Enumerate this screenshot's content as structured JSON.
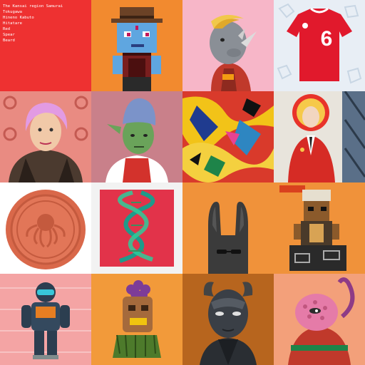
{
  "gallery": {
    "tiles": [
      {
        "name": "text-traits",
        "bg": "#ee3131",
        "lines": [
          "The Kansai region Samurai",
          "Tokugawa",
          "Hineno Kabuto",
          "Hitatare",
          "Red",
          "Spear",
          "Beard"
        ]
      },
      {
        "name": "pixel-cowboy",
        "bg": "#f28a2f"
      },
      {
        "name": "rhino-hoodie",
        "bg": "#f7b6c8"
      },
      {
        "name": "red-jersey",
        "bg": "#e8eef5",
        "jersey_number": "6"
      },
      {
        "name": "pink-hair-woman",
        "bg": "#e98b82"
      },
      {
        "name": "green-elf",
        "bg": "#c9808a"
      },
      {
        "name": "abstract-splash",
        "bg": "#d93a2b"
      },
      {
        "name": "bald-man-suit",
        "bg": "#e8e4dc"
      },
      {
        "name": "orange-coin",
        "bg": "#ffffff"
      },
      {
        "name": "dna-helix",
        "bg": "#f2f2f2"
      },
      {
        "name": "black-bunny",
        "bg": "#f0923a"
      },
      {
        "name": "voxel-figure",
        "bg": "#f0923a"
      },
      {
        "name": "armored-astronaut",
        "bg": "#f4a4a4"
      },
      {
        "name": "tiki-mask-creature",
        "bg": "#f29a3a"
      },
      {
        "name": "horned-cyborg",
        "bg": "#b7651e"
      },
      {
        "name": "pink-monkey",
        "bg": "#f3a07a"
      }
    ]
  }
}
